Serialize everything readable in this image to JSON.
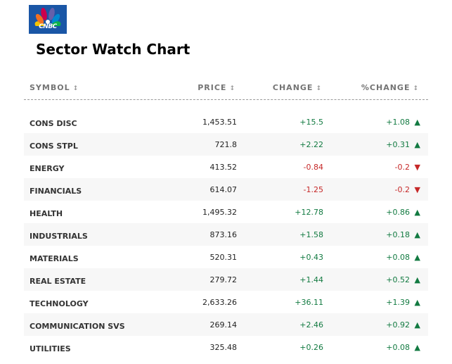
{
  "logo": {
    "text": "CNBC"
  },
  "title": "Sector Watch Chart",
  "columns": {
    "symbol": "SYMBOL",
    "price": "PRICE",
    "change": "CHANGE",
    "pct": "%CHANGE",
    "sort_icon": "↕"
  },
  "colors": {
    "up": "#127a41",
    "down": "#c62828"
  },
  "rows": [
    {
      "symbol": "CONS DISC",
      "price": "1,453.51",
      "change": "+15.5",
      "pct": "+1.08",
      "dir": "up"
    },
    {
      "symbol": "CONS STPL",
      "price": "721.8",
      "change": "+2.22",
      "pct": "+0.31",
      "dir": "up"
    },
    {
      "symbol": "ENERGY",
      "price": "413.52",
      "change": "-0.84",
      "pct": "-0.2",
      "dir": "down"
    },
    {
      "symbol": "FINANCIALS",
      "price": "614.07",
      "change": "-1.25",
      "pct": "-0.2",
      "dir": "down"
    },
    {
      "symbol": "HEALTH",
      "price": "1,495.32",
      "change": "+12.78",
      "pct": "+0.86",
      "dir": "up"
    },
    {
      "symbol": "INDUSTRIALS",
      "price": "873.16",
      "change": "+1.58",
      "pct": "+0.18",
      "dir": "up"
    },
    {
      "symbol": "MATERIALS",
      "price": "520.31",
      "change": "+0.43",
      "pct": "+0.08",
      "dir": "up"
    },
    {
      "symbol": "REAL ESTATE",
      "price": "279.72",
      "change": "+1.44",
      "pct": "+0.52",
      "dir": "up"
    },
    {
      "symbol": "TECHNOLOGY",
      "price": "2,633.26",
      "change": "+36.11",
      "pct": "+1.39",
      "dir": "up"
    },
    {
      "symbol": "COMMUNICATION SVS",
      "price": "269.14",
      "change": "+2.46",
      "pct": "+0.92",
      "dir": "up"
    },
    {
      "symbol": "UTILITIES",
      "price": "325.48",
      "change": "+0.26",
      "pct": "+0.08",
      "dir": "up"
    }
  ]
}
